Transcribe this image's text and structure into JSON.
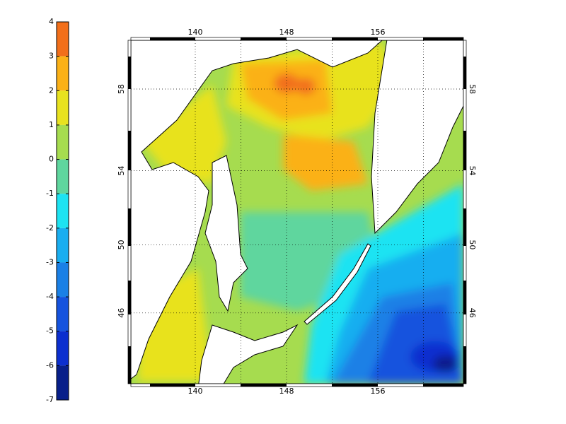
{
  "colorbar": {
    "ticks": [
      4,
      3,
      2,
      1,
      0,
      -1,
      -2,
      -3,
      -4,
      -5,
      -6,
      -7
    ],
    "colors": [
      "#f26f1a",
      "#fbb117",
      "#e8e21f",
      "#a6dc4f",
      "#5fd69e",
      "#1de3f2",
      "#19aef0",
      "#1a80e6",
      "#1553de",
      "#0c2fcf",
      "#081f8a"
    ]
  },
  "map": {
    "lon_ticks": [
      140,
      148,
      156
    ],
    "lat_ticks": [
      58,
      54,
      50,
      46
    ]
  }
}
